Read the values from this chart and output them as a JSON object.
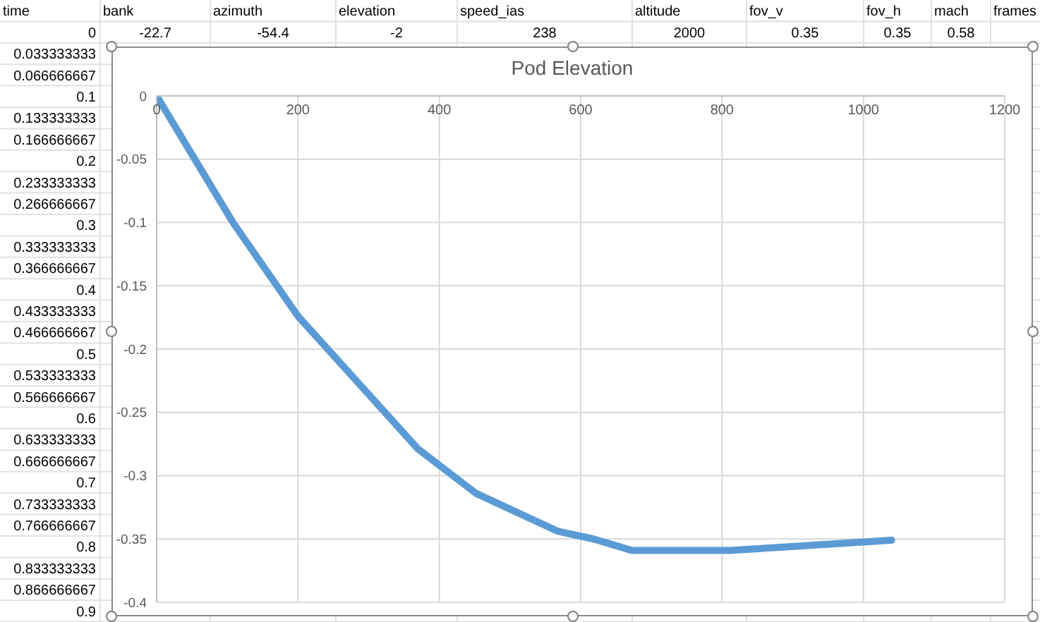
{
  "chart_data": [
    {
      "type": "heatmap",
      "ylabel": "time",
      "categories": [
        "bank",
        "azimuth",
        "elevation",
        "speed_ias",
        "altitude",
        "fov_v",
        "fov_h",
        "mach",
        "frames"
      ],
      "y_categories": [
        "0",
        "0.033333333",
        "0.066666667",
        "0.1",
        "0.133333333",
        "0.166666667",
        "0.2",
        "0.233333333",
        "0.266666667",
        "0.3",
        "0.333333333",
        "0.366666667",
        "0.4",
        "0.433333333",
        "0.466666667",
        "0.5",
        "0.533333333",
        "0.566666667",
        "0.6",
        "0.633333333",
        "0.666666667",
        "0.7",
        "0.733333333",
        "0.766666667",
        "0.8",
        "0.833333333",
        "0.866666667",
        "0.9"
      ],
      "cells": [
        [
          -22.7,
          -54.4,
          -2,
          238,
          2000,
          0.35,
          0.35,
          0.58,
          null
        ],
        [
          null,
          null,
          null,
          null,
          null,
          null,
          null,
          null,
          null
        ],
        [
          null,
          null,
          null,
          null,
          null,
          null,
          null,
          null,
          null
        ],
        [
          null,
          null,
          null,
          null,
          null,
          null,
          null,
          null,
          null
        ],
        [
          null,
          null,
          null,
          null,
          null,
          null,
          null,
          null,
          null
        ],
        [
          null,
          null,
          null,
          null,
          null,
          null,
          null,
          null,
          null
        ],
        [
          null,
          null,
          null,
          null,
          null,
          null,
          null,
          null,
          null
        ],
        [
          null,
          null,
          null,
          null,
          null,
          null,
          null,
          null,
          null
        ],
        [
          null,
          null,
          null,
          null,
          null,
          null,
          null,
          null,
          null
        ],
        [
          null,
          null,
          null,
          null,
          null,
          null,
          null,
          null,
          null
        ],
        [
          null,
          null,
          null,
          null,
          null,
          null,
          null,
          null,
          null
        ],
        [
          null,
          null,
          null,
          null,
          null,
          null,
          null,
          null,
          null
        ],
        [
          null,
          null,
          null,
          null,
          null,
          null,
          null,
          null,
          null
        ],
        [
          null,
          null,
          null,
          null,
          null,
          null,
          null,
          null,
          null
        ],
        [
          null,
          null,
          null,
          null,
          null,
          null,
          null,
          null,
          null
        ],
        [
          null,
          null,
          null,
          null,
          null,
          null,
          null,
          null,
          null
        ],
        [
          null,
          null,
          null,
          null,
          null,
          null,
          null,
          null,
          null
        ],
        [
          null,
          null,
          null,
          null,
          null,
          null,
          null,
          null,
          null
        ],
        [
          null,
          null,
          null,
          null,
          null,
          null,
          null,
          null,
          null
        ],
        [
          null,
          null,
          null,
          null,
          null,
          null,
          null,
          null,
          null
        ],
        [
          null,
          null,
          null,
          null,
          null,
          null,
          null,
          null,
          null
        ],
        [
          null,
          null,
          null,
          null,
          null,
          null,
          null,
          null,
          null
        ],
        [
          null,
          null,
          null,
          null,
          null,
          null,
          null,
          null,
          null
        ],
        [
          null,
          null,
          null,
          null,
          null,
          null,
          null,
          null,
          null
        ],
        [
          null,
          null,
          null,
          null,
          null,
          null,
          null,
          null,
          null
        ],
        [
          null,
          null,
          null,
          null,
          null,
          null,
          null,
          null,
          null
        ],
        [
          null,
          null,
          null,
          null,
          null,
          null,
          null,
          null,
          null
        ],
        [
          null,
          null,
          null,
          null,
          null,
          null,
          null,
          null,
          null
        ]
      ],
      "data_labels": true
    },
    {
      "type": "line",
      "title": "Pod Elevation",
      "color": "#5b9bd5",
      "x": [
        0,
        108,
        200,
        370,
        452,
        568,
        618,
        672,
        812,
        1040
      ],
      "values": [
        0,
        -0.1,
        -0.174,
        -0.279,
        -0.314,
        -0.344,
        -0.35,
        -0.359,
        -0.359,
        -0.351
      ],
      "xlim": [
        0,
        1200
      ],
      "xticks": [
        0,
        200,
        400,
        600,
        800,
        1000,
        1200
      ],
      "ylim": [
        -0.4,
        0
      ],
      "yticks": [
        0,
        -0.05,
        -0.1,
        -0.15,
        -0.2,
        -0.25,
        -0.3,
        -0.35,
        -0.4
      ],
      "grid": true
    }
  ]
}
